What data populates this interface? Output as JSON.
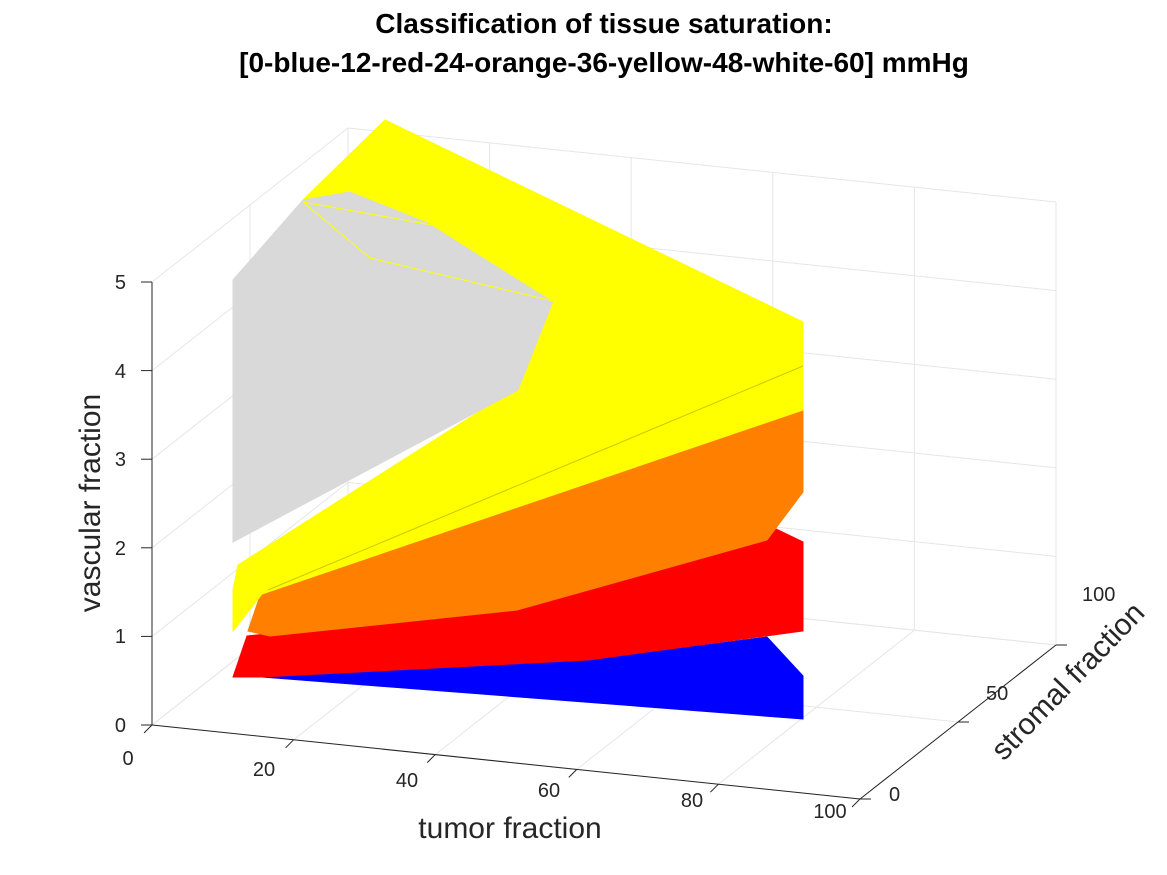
{
  "chart_data": {
    "type": "surface3d",
    "title_lines": [
      "Classification of tissue saturation:",
      "[0-blue-12-red-24-orange-36-yellow-48-white-60] mmHg"
    ],
    "xlabel": "tumor fraction",
    "ylabel": "stromal fraction",
    "zlabel": "vascular fraction",
    "x_ticks": [
      "0",
      "20",
      "40",
      "60",
      "80",
      "100"
    ],
    "y_ticks": [
      "0",
      "50",
      "100"
    ],
    "z_ticks": [
      "0",
      "1",
      "2",
      "3",
      "4",
      "5"
    ],
    "xlim": [
      0,
      100
    ],
    "ylim": [
      0,
      100
    ],
    "zlim": [
      0,
      5
    ],
    "grid": true,
    "colors": {
      "blue": "#0000ff",
      "red": "#ff0000",
      "orange": "#ff8000",
      "yellow": "#ffff00",
      "white": "#d9d9d9"
    },
    "regions": [
      {
        "name": "blue",
        "range": "0-12 mmHg"
      },
      {
        "name": "red",
        "range": "12-24 mmHg"
      },
      {
        "name": "orange",
        "range": "24-36 mmHg"
      },
      {
        "name": "yellow",
        "range": "36-48 mmHg"
      },
      {
        "name": "white",
        "range": "48-60 mmHg"
      }
    ]
  }
}
